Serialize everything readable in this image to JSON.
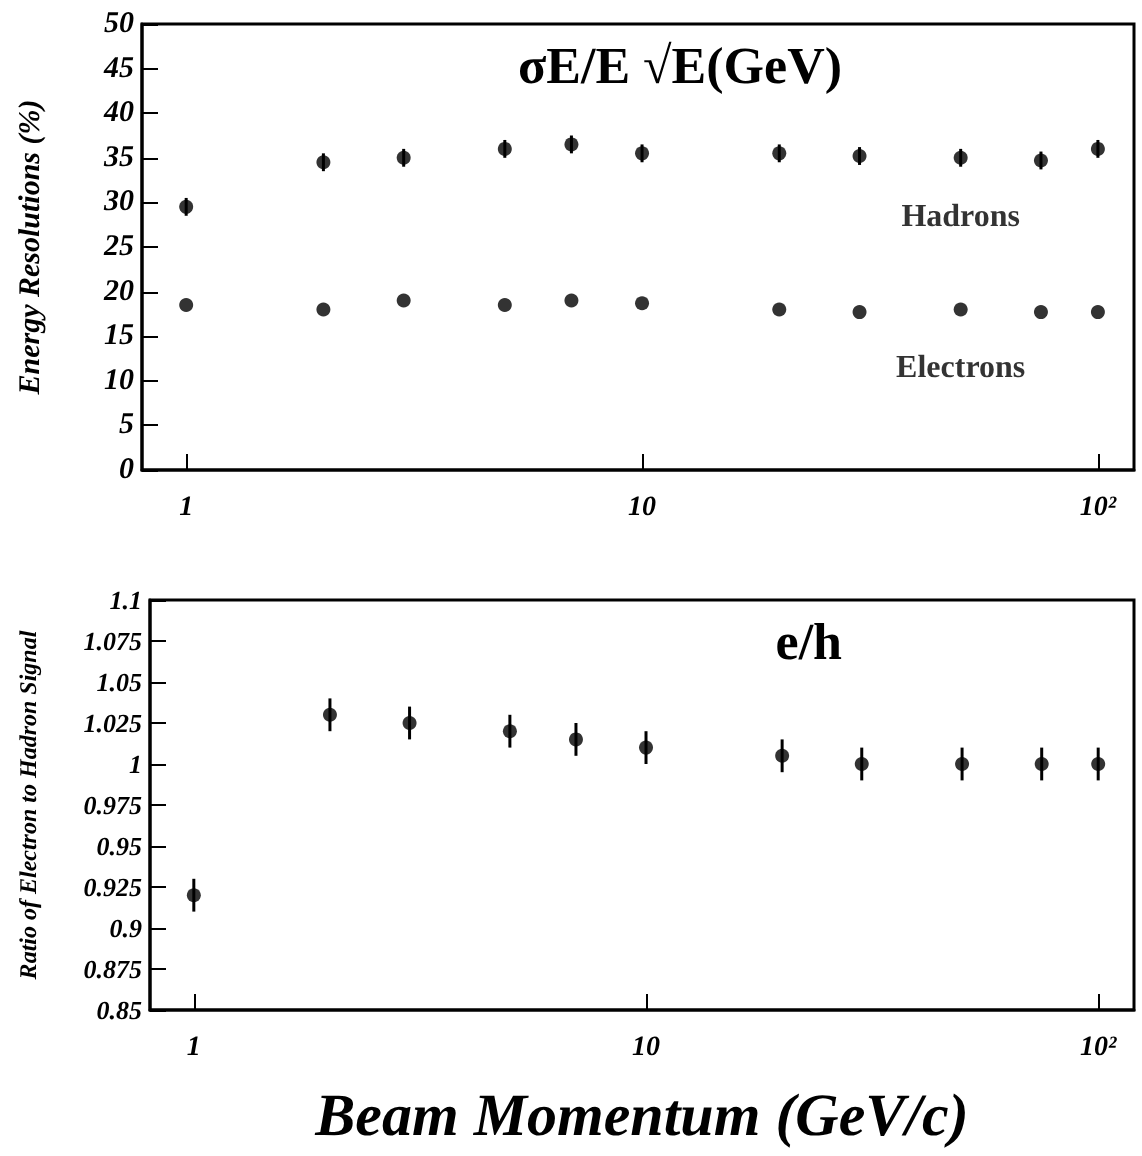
{
  "chart_data": [
    {
      "type": "scatter",
      "ylabel": "Energy Resolutions (%)",
      "x": [
        1,
        2,
        3,
        5,
        7,
        10,
        20,
        30,
        50,
        75,
        100
      ],
      "series": [
        {
          "name": "Hadrons",
          "color": "#000000",
          "values": [
            29.5,
            34.5,
            35,
            36,
            36.5,
            35.5,
            35.5,
            35.2,
            35,
            34.7,
            36
          ],
          "errors": [
            1,
            1,
            1,
            1,
            1,
            1,
            1,
            1,
            1,
            1,
            1
          ]
        },
        {
          "name": "Electrons",
          "color": "#000000",
          "values": [
            18.5,
            18,
            19,
            18.5,
            19,
            18.7,
            18,
            17.7,
            18,
            17.7,
            17.7
          ]
        }
      ],
      "xlim": [
        0.8,
        120
      ],
      "xticks": [
        {
          "value": 1,
          "label": "1"
        },
        {
          "value": 10,
          "label": "10"
        },
        {
          "value": 100,
          "label": "10²"
        }
      ],
      "ylim": [
        0,
        50
      ],
      "yticks": [
        0,
        5,
        10,
        15,
        20,
        25,
        30,
        35,
        40,
        45,
        50
      ],
      "log": "x",
      "grid": false,
      "legend": false,
      "marker": "circle",
      "annotations": [
        "σE/E √E(GeV)"
      ]
    },
    {
      "type": "scatter",
      "ylabel": "Ratio of Electron to Hadron Signal",
      "xlabel": "Beam Momentum (GeV/c)",
      "x": [
        1,
        2,
        3,
        5,
        7,
        10,
        20,
        30,
        50,
        75,
        100
      ],
      "series": [
        {
          "color": "#000000",
          "values": [
            0.92,
            1.03,
            1.025,
            1.02,
            1.015,
            1.01,
            1.005,
            1.0,
            1.0,
            1.0,
            1.0
          ],
          "errors": [
            0.01,
            0.01,
            0.01,
            0.01,
            0.01,
            0.01,
            0.01,
            0.01,
            0.01,
            0.01,
            0.01
          ]
        }
      ],
      "xlim": [
        0.8,
        120
      ],
      "xticks": [
        {
          "value": 1,
          "label": "1"
        },
        {
          "value": 10,
          "label": "10"
        },
        {
          "value": 100,
          "label": "10²"
        }
      ],
      "ylim": [
        0.85,
        1.1
      ],
      "yticks": [
        0.85,
        0.875,
        0.9,
        0.925,
        0.95,
        0.975,
        1,
        1.025,
        1.05,
        1.075,
        1.1
      ],
      "log": "x",
      "grid": false,
      "legend": false,
      "marker": "circle",
      "annotations": [
        "e/h"
      ]
    }
  ]
}
